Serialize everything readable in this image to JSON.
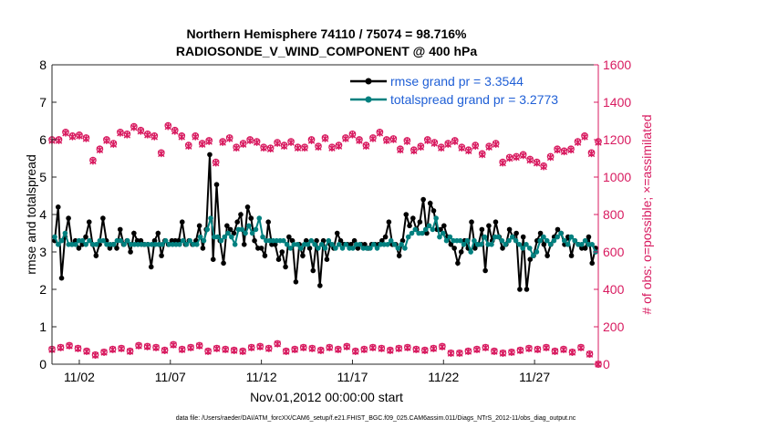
{
  "chart_data": {
    "type": "line",
    "title_line1": "Northern Hemisphere 74110 / 75074 = 98.716%",
    "title_line2": "RADIOSONDE_V_WIND_COMPONENT @ 400 hPa",
    "ylabel_left": "rmse and totalspread",
    "ylabel_right": "# of obs: o=possible; ×=assimilated",
    "xlabel": "Nov.01,2012 00:00:00 start",
    "footnote": "data file: /Users/raeder/DAI/ATM_forcXX/CAM6_setup/f.e21.FHIST_BGC.f09_025.CAM6assim.011/Diags_NTrS_2012-11/obs_diag_output.nc",
    "colors": {
      "rmse": "#000000",
      "spread": "#00807f",
      "obs": "#d81b60",
      "legend_text": "#1f5fd6"
    },
    "left_axis": {
      "min": 0,
      "max": 8,
      "ticks": [
        "0",
        "1",
        "2",
        "3",
        "4",
        "5",
        "6",
        "7",
        "8"
      ]
    },
    "right_axis": {
      "min": 0,
      "max": 1600,
      "ticks": [
        "0",
        "200",
        "400",
        "600",
        "800",
        "1000",
        "1200",
        "1400",
        "1600"
      ]
    },
    "x_axis": {
      "min": 0,
      "max": 30,
      "tick_positions": [
        1.5,
        6.5,
        11.5,
        16.5,
        21.5,
        26.5
      ],
      "tick_labels": [
        "11/02",
        "11/07",
        "11/12",
        "11/17",
        "11/22",
        "11/27"
      ]
    },
    "legend": {
      "rmse_label": "rmse grand pr = 3.3544",
      "spread_label": "totalspread grand pr = 3.2773",
      "location": "top-right"
    },
    "series": [
      {
        "name": "rmse",
        "values": [
          3.3,
          4.2,
          2.3,
          3.4,
          3.9,
          3.2,
          3.3,
          3.1,
          3.2,
          3.4,
          3.8,
          3.2,
          2.9,
          3.2,
          3.9,
          3.3,
          3.1,
          3.2,
          3.1,
          3.6,
          3.2,
          3.3,
          3.0,
          3.5,
          3.3,
          3.3,
          3.2,
          3.2,
          2.6,
          3.3,
          3.5,
          2.9,
          3.3,
          3.2,
          3.3,
          3.3,
          3.3,
          3.8,
          3.2,
          3.3,
          3.2,
          3.3,
          3.7,
          3.1,
          3.6,
          5.6,
          2.8,
          4.8,
          3.3,
          2.7,
          3.7,
          3.6,
          3.5,
          3.8,
          4.0,
          3.2,
          4.2,
          3.9,
          3.3,
          3.1,
          3.1,
          2.9,
          3.8,
          3.2,
          3.2,
          2.8,
          3.0,
          2.6,
          3.4,
          3.3,
          2.2,
          3.2,
          2.9,
          3.3,
          3.1,
          2.5,
          3.3,
          2.1,
          3.3,
          2.8,
          3.2,
          3.1,
          3.5,
          3.3,
          3.2,
          3.2,
          3.2,
          3.3,
          3.1,
          3.2,
          3.2,
          3.1,
          3.2,
          3.2,
          3.2,
          3.3,
          3.4,
          3.8,
          3.2,
          3.2,
          2.9,
          3.3,
          4.0,
          3.7,
          3.9,
          3.6,
          3.8,
          4.4,
          3.5,
          4.3,
          4.1,
          3.6,
          3.6,
          3.7,
          3.4,
          3.2,
          3.1,
          2.7,
          3.0,
          3.3,
          3.1,
          3.8,
          3.1,
          3.2,
          3.6,
          2.5,
          3.7,
          3.3,
          3.8,
          3.4,
          3.1,
          3.2,
          3.6,
          3.4,
          3.5,
          2.0,
          3.4,
          2.0,
          2.8,
          2.9,
          3.3,
          3.5,
          3.2,
          2.9,
          3.2,
          3.4,
          3.6,
          3.5,
          3.2,
          3.4,
          2.9,
          3.3,
          3.2,
          3.1,
          3.1,
          3.4,
          2.7,
          3.1
        ]
      },
      {
        "name": "totalspread",
        "values": [
          3.4,
          3.2,
          3.3,
          3.5,
          3.2,
          3.2,
          3.2,
          3.3,
          3.3,
          3.2,
          3.3,
          3.2,
          3.2,
          3.3,
          3.3,
          3.2,
          3.2,
          3.2,
          3.3,
          3.3,
          3.2,
          3.3,
          3.2,
          3.2,
          3.2,
          3.2,
          3.2,
          3.2,
          3.2,
          3.2,
          3.2,
          3.2,
          3.3,
          3.2,
          3.2,
          3.2,
          3.2,
          3.3,
          3.2,
          3.3,
          3.2,
          3.2,
          3.4,
          3.3,
          3.6,
          3.9,
          3.4,
          3.4,
          3.3,
          3.4,
          3.5,
          3.4,
          3.2,
          3.6,
          3.6,
          3.5,
          3.7,
          3.5,
          3.6,
          3.9,
          3.4,
          3.3,
          3.3,
          3.3,
          3.3,
          3.3,
          3.3,
          3.2,
          3.1,
          3.2,
          3.2,
          3.1,
          3.2,
          3.2,
          3.3,
          3.2,
          3.1,
          3.2,
          3.1,
          3.3,
          3.2,
          3.1,
          3.2,
          3.1,
          3.2,
          3.1,
          3.1,
          3.2,
          3.2,
          3.1,
          3.1,
          3.1,
          3.2,
          3.1,
          3.2,
          3.2,
          3.2,
          3.3,
          3.2,
          3.1,
          3.2,
          3.1,
          3.4,
          3.5,
          3.6,
          3.5,
          3.5,
          3.6,
          3.7,
          3.6,
          3.9,
          3.4,
          3.5,
          3.3,
          3.4,
          3.3,
          3.3,
          3.3,
          3.2,
          3.3,
          3.0,
          3.3,
          3.2,
          3.2,
          3.4,
          3.2,
          3.2,
          3.4,
          3.4,
          3.3,
          3.2,
          3.3,
          3.4,
          3.3,
          3.2,
          3.1,
          3.2,
          3.1,
          2.9,
          3.0,
          3.3,
          3.4,
          3.3,
          3.2,
          3.3,
          3.4,
          3.5,
          3.3,
          3.2,
          3.4,
          3.3,
          3.2,
          3.2,
          3.3,
          3.2,
          3.2,
          3.0
        ]
      },
      {
        "name": "possible_upper",
        "values": [
          1200,
          1200,
          1240,
          1220,
          1225,
          1210,
          1090,
          1150,
          1200,
          1180,
          1240,
          1230,
          1270,
          1250,
          1230,
          1220,
          1130,
          1275,
          1250,
          1220,
          1170,
          1220,
          1180,
          1195,
          1080,
          1190,
          1210,
          1160,
          1180,
          1200,
          1190,
          1160,
          1155,
          1185,
          1170,
          1190,
          1160,
          1160,
          1200,
          1165,
          1210,
          1160,
          1170,
          1210,
          1230,
          1200,
          1170,
          1210,
          1240,
          1200,
          1205,
          1150,
          1195,
          1145,
          1165,
          1200,
          1185,
          1160,
          1180,
          1195,
          1160,
          1145,
          1170,
          1125,
          1165,
          1180,
          1080,
          1105,
          1110,
          1120,
          1095,
          1080,
          1060,
          1110,
          1150,
          1140,
          1150,
          1190,
          1220,
          1130,
          1190
        ]
      },
      {
        "name": "assimilated_upper",
        "values": [
          1195,
          1195,
          1235,
          1215,
          1220,
          1205,
          1085,
          1145,
          1195,
          1175,
          1235,
          1225,
          1265,
          1245,
          1225,
          1215,
          1125,
          1270,
          1245,
          1215,
          1165,
          1215,
          1175,
          1190,
          1075,
          1185,
          1205,
          1155,
          1175,
          1195,
          1185,
          1155,
          1150,
          1180,
          1165,
          1185,
          1155,
          1155,
          1195,
          1160,
          1205,
          1155,
          1165,
          1205,
          1225,
          1195,
          1165,
          1205,
          1235,
          1195,
          1200,
          1145,
          1190,
          1140,
          1160,
          1195,
          1180,
          1155,
          1175,
          1190,
          1155,
          1140,
          1165,
          1120,
          1160,
          1175,
          1075,
          1100,
          1105,
          1115,
          1090,
          1075,
          1055,
          1105,
          1145,
          1135,
          1145,
          1185,
          1215,
          1125,
          1185
        ]
      },
      {
        "name": "possible_lower",
        "values": [
          80,
          90,
          100,
          85,
          70,
          50,
          65,
          80,
          85,
          70,
          100,
          95,
          90,
          75,
          105,
          80,
          90,
          100,
          70,
          85,
          80,
          75,
          70,
          90,
          95,
          85,
          110,
          70,
          80,
          90,
          85,
          75,
          90,
          80,
          95,
          70,
          80,
          90,
          85,
          75,
          85,
          90,
          80,
          75,
          85,
          95,
          60,
          60,
          70,
          80,
          90,
          70,
          60,
          65,
          75,
          85,
          80,
          90,
          70,
          80,
          65,
          90,
          55,
          0
        ]
      },
      {
        "name": "assimilated_lower",
        "values": [
          78,
          88,
          98,
          83,
          68,
          48,
          63,
          78,
          83,
          68,
          98,
          93,
          88,
          73,
          103,
          78,
          88,
          98,
          68,
          83,
          78,
          73,
          68,
          88,
          93,
          83,
          108,
          68,
          78,
          88,
          83,
          73,
          88,
          78,
          93,
          68,
          78,
          88,
          83,
          73,
          83,
          88,
          78,
          73,
          83,
          93,
          58,
          58,
          68,
          78,
          88,
          68,
          58,
          63,
          73,
          83,
          78,
          88,
          68,
          78,
          63,
          88,
          53,
          0
        ]
      }
    ]
  }
}
